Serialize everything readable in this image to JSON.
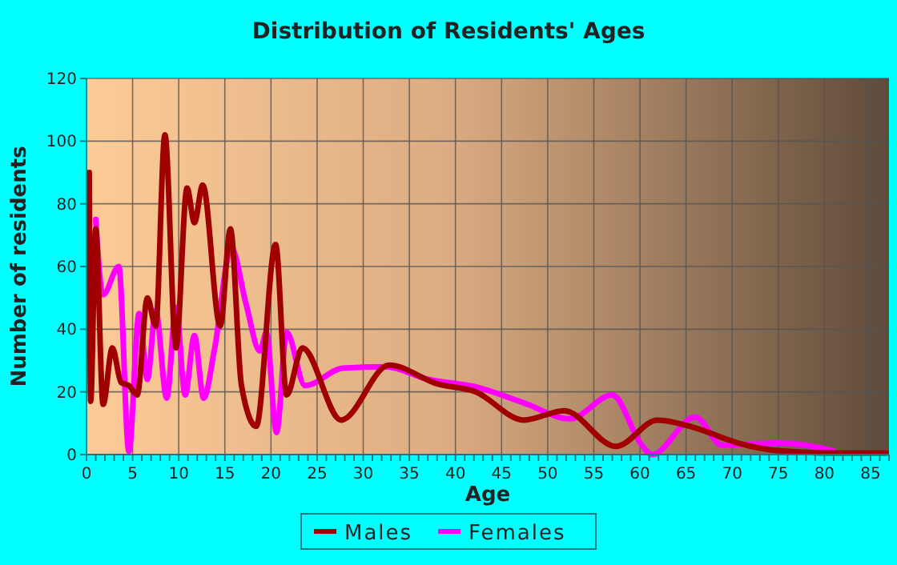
{
  "chart_data": {
    "type": "line",
    "title": "Distribution of Residents' Ages",
    "xlabel": "Age",
    "ylabel": "Number of residents",
    "xlim": [
      0,
      87
    ],
    "ylim": [
      0,
      120
    ],
    "xticks": [
      0,
      {
        "value": 1,
        "label": null
      },
      {
        "value": 2,
        "label": null
      },
      {
        "value": 3,
        "label": null
      },
      {
        "value": 4,
        "label": null
      },
      5,
      {
        "value": 6,
        "label": null
      },
      {
        "value": 7,
        "label": null
      },
      {
        "value": 8,
        "label": null
      },
      {
        "value": 9,
        "label": null
      },
      10,
      {
        "value": 11,
        "label": null
      },
      {
        "value": 12,
        "label": null
      },
      {
        "value": 13,
        "label": null
      },
      {
        "value": 14,
        "label": null
      },
      15,
      {
        "value": 16,
        "label": null
      },
      {
        "value": 17,
        "label": null
      },
      {
        "value": 18,
        "label": null
      },
      {
        "value": 19,
        "label": null
      },
      20,
      {
        "value": 21,
        "label": null
      },
      {
        "value": 22,
        "label": null
      },
      {
        "value": 23,
        "label": null
      },
      {
        "value": 24,
        "label": null
      },
      25,
      {
        "value": 26,
        "label": null
      },
      {
        "value": 27,
        "label": null
      },
      {
        "value": 28,
        "label": null
      },
      {
        "value": 29,
        "label": null
      },
      30,
      {
        "value": 31,
        "label": null
      },
      {
        "value": 32,
        "label": null
      },
      {
        "value": 33,
        "label": null
      },
      {
        "value": 34,
        "label": null
      },
      35,
      {
        "value": 36,
        "label": null
      },
      {
        "value": 37,
        "label": null
      },
      {
        "value": 38,
        "label": null
      },
      {
        "value": 39,
        "label": null
      },
      40,
      {
        "value": 41,
        "label": null
      },
      {
        "value": 42,
        "label": null
      },
      {
        "value": 43,
        "label": null
      },
      {
        "value": 44,
        "label": null
      },
      45,
      {
        "value": 46,
        "label": null
      },
      {
        "value": 47,
        "label": null
      },
      {
        "value": 48,
        "label": null
      },
      {
        "value": 49,
        "label": null
      },
      50,
      {
        "value": 51,
        "label": null
      },
      {
        "value": 52,
        "label": null
      },
      {
        "value": 53,
        "label": null
      },
      {
        "value": 54,
        "label": null
      },
      55,
      {
        "value": 56,
        "label": null
      },
      {
        "value": 57,
        "label": null
      },
      {
        "value": 58,
        "label": null
      },
      {
        "value": 59,
        "label": null
      },
      60,
      {
        "value": 61,
        "label": null
      },
      {
        "value": 62,
        "label": null
      },
      {
        "value": 63,
        "label": null
      },
      {
        "value": 64,
        "label": null
      },
      65,
      {
        "value": 66,
        "label": null
      },
      {
        "value": 67,
        "label": null
      },
      {
        "value": 68,
        "label": null
      },
      {
        "value": 69,
        "label": null
      },
      70,
      {
        "value": 71,
        "label": null
      },
      {
        "value": 72,
        "label": null
      },
      {
        "value": 73,
        "label": null
      },
      {
        "value": 74,
        "label": null
      },
      75,
      {
        "value": 76,
        "label": null
      },
      {
        "value": 77,
        "label": null
      },
      {
        "value": 78,
        "label": null
      },
      {
        "value": 79,
        "label": null
      },
      80,
      {
        "value": 81,
        "label": null
      },
      {
        "value": 82,
        "label": null
      },
      {
        "value": 83,
        "label": null
      },
      {
        "value": 84,
        "label": null
      },
      85,
      {
        "value": 86,
        "label": null
      },
      {
        "value": 87,
        "label": null
      }
    ],
    "yticks": [
      0,
      20,
      40,
      60,
      80,
      100,
      120
    ],
    "grid": true,
    "legend": "bottom",
    "marker": "none",
    "line_style": "solid",
    "series": [
      {
        "name": "Males",
        "color": "#a00000",
        "x": [
          0.3,
          0.45,
          1,
          1.8,
          2.8,
          3.75,
          4.6,
          5.5,
          6.6,
          7.5,
          8.5,
          9.7,
          10.9,
          11.7,
          12.6,
          14.5,
          15.6,
          16.8,
          18.4,
          20.5,
          21.7,
          23.4,
          27.6,
          32.8,
          38.1,
          42.2,
          47.4,
          51.8,
          57.4,
          61.9,
          65.9,
          70.6,
          75.2,
          81,
          86.7
        ],
        "values": [
          90,
          17,
          72,
          16,
          34,
          23,
          22,
          19,
          50,
          41,
          102,
          34,
          85,
          74,
          86,
          41,
          72,
          22,
          9,
          67,
          19,
          34,
          11,
          28.5,
          22.5,
          20,
          11,
          14,
          2.6,
          11,
          8.6,
          3.7,
          1.2,
          0.5,
          0.5
        ]
      },
      {
        "name": "Females",
        "color": "#ff00ff",
        "x": [
          1,
          1.8,
          3.5,
          4.6,
          5.7,
          6.6,
          7.5,
          8.7,
          9.7,
          10.7,
          11.7,
          12.7,
          13.9,
          15.7,
          17.3,
          18.8,
          19.5,
          20.6,
          21.7,
          23.7,
          27.8,
          32.4,
          37,
          42.2,
          47.4,
          52.4,
          57,
          60.2,
          61.3,
          66,
          68.9,
          75.2,
          81
        ],
        "values": [
          75,
          51,
          60,
          1,
          45,
          24,
          46,
          18,
          47,
          19,
          38,
          18,
          34,
          66,
          48,
          33,
          39,
          7,
          39,
          22,
          27.6,
          28,
          24,
          21.6,
          16.5,
          11.4,
          19,
          3,
          0,
          12,
          3,
          3.7,
          1.2
        ]
      }
    ]
  }
}
